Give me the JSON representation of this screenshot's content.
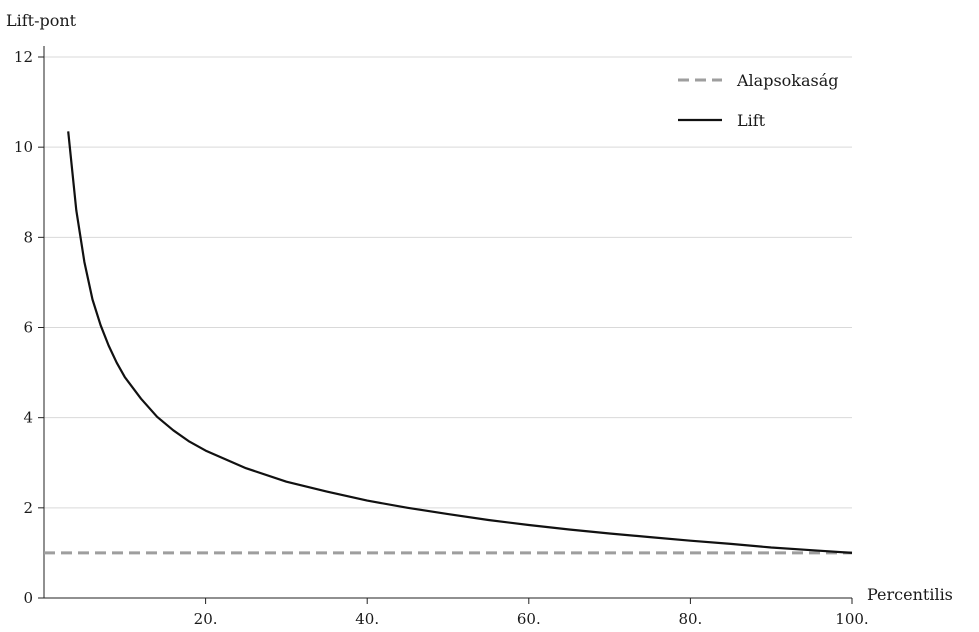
{
  "chart_data": {
    "type": "line",
    "title": "",
    "xlabel": "Percentilis",
    "ylabel": "Lift-pont",
    "xlim": [
      0,
      100
    ],
    "ylim": [
      0,
      12
    ],
    "grid": "horizontal",
    "legend_position": "top-right",
    "x_ticks": [
      {
        "value": 20,
        "label": "20."
      },
      {
        "value": 40,
        "label": "40."
      },
      {
        "value": 60,
        "label": "60."
      },
      {
        "value": 80,
        "label": "80."
      },
      {
        "value": 100,
        "label": "100."
      }
    ],
    "y_ticks": [
      {
        "value": 0,
        "label": "0"
      },
      {
        "value": 2,
        "label": "2"
      },
      {
        "value": 4,
        "label": "4"
      },
      {
        "value": 6,
        "label": "6"
      },
      {
        "value": 8,
        "label": "8"
      },
      {
        "value": 10,
        "label": "10"
      },
      {
        "value": 12,
        "label": "12"
      }
    ],
    "series": [
      {
        "name": "Alapsokaság",
        "color": "#9e9e9e",
        "style": "dashed",
        "x": [
          0,
          100
        ],
        "y": [
          1,
          1
        ]
      },
      {
        "name": "Lift",
        "color": "#111111",
        "style": "solid",
        "x": [
          3,
          4,
          5,
          6,
          7,
          8,
          9,
          10,
          12,
          14,
          16,
          18,
          20,
          25,
          30,
          35,
          40,
          45,
          50,
          55,
          60,
          65,
          70,
          75,
          80,
          85,
          90,
          95,
          100
        ],
        "y": [
          10.35,
          8.6,
          7.45,
          6.62,
          6.05,
          5.6,
          5.22,
          4.9,
          4.42,
          4.02,
          3.72,
          3.47,
          3.27,
          2.88,
          2.58,
          2.36,
          2.16,
          2.0,
          1.86,
          1.73,
          1.62,
          1.52,
          1.43,
          1.35,
          1.27,
          1.2,
          1.12,
          1.06,
          1.0
        ]
      }
    ]
  }
}
